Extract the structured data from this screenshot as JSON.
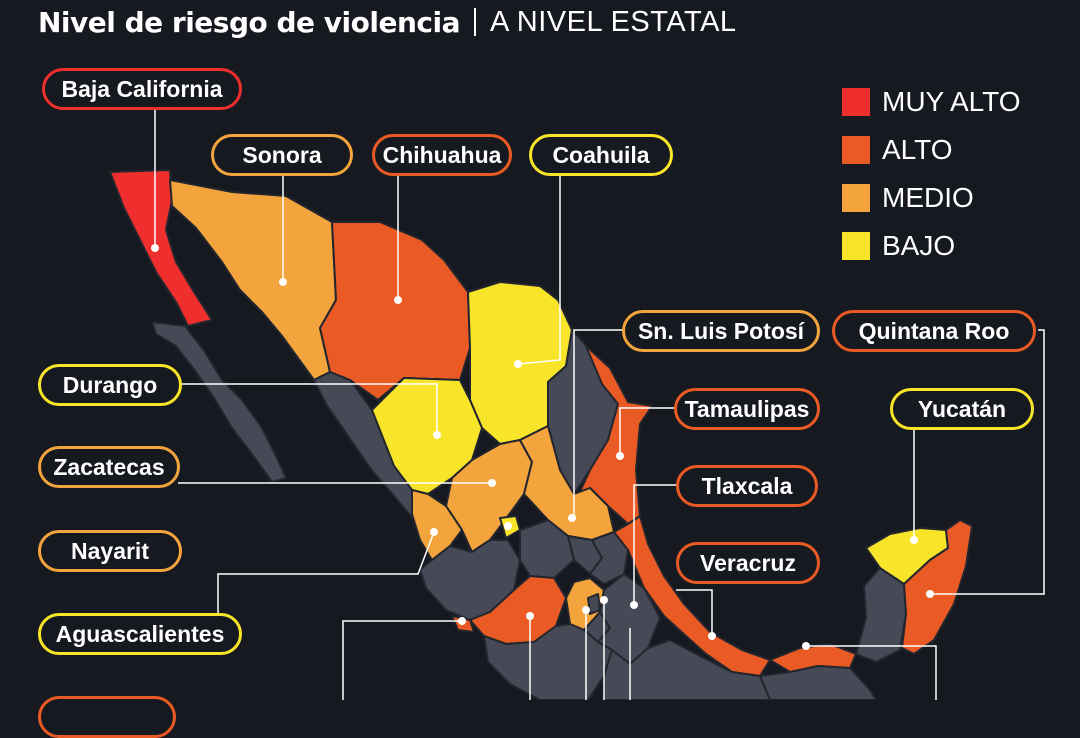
{
  "title": {
    "main": "Nivel de riesgo de violencia",
    "sub": "A NIVEL ESTATAL"
  },
  "legend": [
    {
      "label": "MUY ALTO",
      "color": "#ef2e2e"
    },
    {
      "label": "ALTO",
      "color": "#ea5a24"
    },
    {
      "label": "MEDIO",
      "color": "#f4a43c"
    },
    {
      "label": "BAJO",
      "color": "#f8e52a"
    }
  ],
  "states": {
    "baja_california": {
      "label": "Baja California",
      "level": "MUY ALTO"
    },
    "sonora": {
      "label": "Sonora",
      "level": "MEDIO"
    },
    "chihuahua": {
      "label": "Chihuahua",
      "level": "ALTO"
    },
    "coahuila": {
      "label": "Coahuila",
      "level": "BAJO"
    },
    "sn_luis_potosi": {
      "label": "Sn. Luis Potosí",
      "level": "MEDIO"
    },
    "quintana_roo": {
      "label": "Quintana Roo",
      "level": "ALTO"
    },
    "durango": {
      "label": "Durango",
      "level": "BAJO"
    },
    "tamaulipas": {
      "label": "Tamaulipas",
      "level": "ALTO"
    },
    "yucatan": {
      "label": "Yucatán",
      "level": "BAJO"
    },
    "zacatecas": {
      "label": "Zacatecas",
      "level": "MEDIO"
    },
    "tlaxcala": {
      "label": "Tlaxcala",
      "level": "ALTO"
    },
    "nayarit": {
      "label": "Nayarit",
      "level": "MEDIO"
    },
    "veracruz": {
      "label": "Veracruz",
      "level": "ALTO"
    },
    "aguascalientes": {
      "label": "Aguascalientes",
      "level": "BAJO"
    }
  },
  "colors": {
    "background": "#16191f",
    "unclassified": "#464a56",
    "border": "#23262e"
  }
}
